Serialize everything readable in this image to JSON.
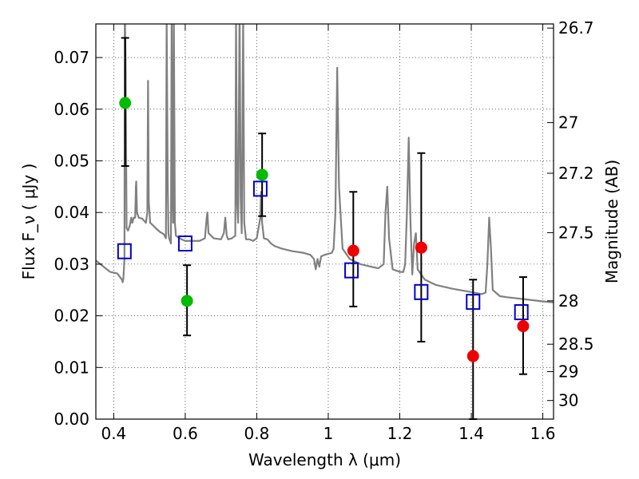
{
  "chart_data": {
    "type": "scatter",
    "xlabel": "Wavelength  λ (μm)",
    "ylabel": "Flux  F_ν  ( μJy )",
    "y2label": "Magnitude (AB)",
    "xlim": [
      0.35,
      1.63
    ],
    "ylim": [
      0.0,
      0.0765
    ],
    "grid": true,
    "x_ticks": [
      {
        "value": 0.4,
        "label": "0.4"
      },
      {
        "value": 0.6,
        "label": "0.6"
      },
      {
        "value": 0.8,
        "label": "0.8"
      },
      {
        "value": 1.0,
        "label": "1"
      },
      {
        "value": 1.2,
        "label": "1.2"
      },
      {
        "value": 1.4,
        "label": "1.4"
      },
      {
        "value": 1.6,
        "label": "1.6"
      }
    ],
    "y_ticks": [
      {
        "value": 0.0,
        "label": "0.00"
      },
      {
        "value": 0.01,
        "label": "0.01"
      },
      {
        "value": 0.02,
        "label": "0.02"
      },
      {
        "value": 0.03,
        "label": "0.03"
      },
      {
        "value": 0.04,
        "label": "0.04"
      },
      {
        "value": 0.05,
        "label": "0.05"
      },
      {
        "value": 0.06,
        "label": "0.06"
      },
      {
        "value": 0.07,
        "label": "0.07"
      }
    ],
    "y2_ticks": [
      {
        "flux": 0.0757,
        "label": "26.7"
      },
      {
        "flux": 0.0574,
        "label": "27"
      },
      {
        "flux": 0.0476,
        "label": "27.2"
      },
      {
        "flux": 0.0361,
        "label": "27.5"
      },
      {
        "flux": 0.0229,
        "label": "28"
      },
      {
        "flux": 0.0145,
        "label": "28.5"
      },
      {
        "flux": 0.0092,
        "label": "29"
      },
      {
        "flux": 0.0036,
        "label": "30"
      }
    ],
    "series": [
      {
        "color": "#808080",
        "kind": "line",
        "points": [
          [
            0.35,
            0.0307
          ],
          [
            0.37,
            0.0296
          ],
          [
            0.39,
            0.0285
          ],
          [
            0.41,
            0.0282
          ],
          [
            0.423,
            0.027
          ],
          [
            0.425,
            0.0265
          ],
          [
            0.427,
            0.0272
          ],
          [
            0.43,
            0.031
          ],
          [
            0.431,
            0.08
          ],
          [
            0.433,
            0.07
          ],
          [
            0.436,
            0.037
          ],
          [
            0.44,
            0.0365
          ],
          [
            0.445,
            0.0375
          ],
          [
            0.449,
            0.039
          ],
          [
            0.452,
            0.038
          ],
          [
            0.456,
            0.039
          ],
          [
            0.46,
            0.039
          ],
          [
            0.462,
            0.045
          ],
          [
            0.463,
            0.046
          ],
          [
            0.465,
            0.04
          ],
          [
            0.47,
            0.039
          ],
          [
            0.48,
            0.0388
          ],
          [
            0.49,
            0.038
          ],
          [
            0.494,
            0.04
          ],
          [
            0.496,
            0.0655
          ],
          [
            0.498,
            0.042
          ],
          [
            0.502,
            0.038
          ],
          [
            0.51,
            0.0375
          ],
          [
            0.52,
            0.0368
          ],
          [
            0.53,
            0.0362
          ],
          [
            0.54,
            0.0358
          ],
          [
            0.546,
            0.035
          ],
          [
            0.548,
            0.078
          ],
          [
            0.551,
            0.046
          ],
          [
            0.553,
            0.036
          ],
          [
            0.555,
            0.035
          ],
          [
            0.56,
            0.034
          ],
          [
            0.562,
            0.078
          ],
          [
            0.564,
            0.045
          ],
          [
            0.566,
            0.038
          ],
          [
            0.568,
            0.08
          ],
          [
            0.571,
            0.038
          ],
          [
            0.574,
            0.0355
          ],
          [
            0.58,
            0.0352
          ],
          [
            0.59,
            0.0348
          ],
          [
            0.6,
            0.0345
          ],
          [
            0.62,
            0.0345
          ],
          [
            0.64,
            0.0345
          ],
          [
            0.655,
            0.035
          ],
          [
            0.66,
            0.039
          ],
          [
            0.662,
            0.04
          ],
          [
            0.665,
            0.036
          ],
          [
            0.68,
            0.035
          ],
          [
            0.7,
            0.0348
          ],
          [
            0.708,
            0.036
          ],
          [
            0.712,
            0.039
          ],
          [
            0.716,
            0.0355
          ],
          [
            0.72,
            0.0348
          ],
          [
            0.73,
            0.035
          ],
          [
            0.74,
            0.0355
          ],
          [
            0.742,
            0.078
          ],
          [
            0.745,
            0.042
          ],
          [
            0.748,
            0.038
          ],
          [
            0.752,
            0.08
          ],
          [
            0.755,
            0.043
          ],
          [
            0.758,
            0.036
          ],
          [
            0.762,
            0.078
          ],
          [
            0.765,
            0.038
          ],
          [
            0.77,
            0.0348
          ],
          [
            0.78,
            0.0348
          ],
          [
            0.79,
            0.0345
          ],
          [
            0.8,
            0.035
          ],
          [
            0.81,
            0.039
          ],
          [
            0.812,
            0.044
          ],
          [
            0.815,
            0.038
          ],
          [
            0.82,
            0.035
          ],
          [
            0.83,
            0.0348
          ],
          [
            0.84,
            0.034
          ],
          [
            0.85,
            0.0335
          ],
          [
            0.87,
            0.033
          ],
          [
            0.9,
            0.0325
          ],
          [
            0.93,
            0.0322
          ],
          [
            0.95,
            0.0318
          ],
          [
            0.96,
            0.031
          ],
          [
            0.965,
            0.029
          ],
          [
            0.97,
            0.031
          ],
          [
            0.975,
            0.0295
          ],
          [
            0.98,
            0.0315
          ],
          [
            0.99,
            0.0318
          ],
          [
            1.0,
            0.032
          ],
          [
            1.01,
            0.0322
          ],
          [
            1.015,
            0.033
          ],
          [
            1.02,
            0.04
          ],
          [
            1.025,
            0.068
          ],
          [
            1.03,
            0.045
          ],
          [
            1.04,
            0.033
          ],
          [
            1.06,
            0.031
          ],
          [
            1.09,
            0.03
          ],
          [
            1.12,
            0.0295
          ],
          [
            1.14,
            0.0292
          ],
          [
            1.155,
            0.03
          ],
          [
            1.16,
            0.04
          ],
          [
            1.165,
            0.045
          ],
          [
            1.17,
            0.035
          ],
          [
            1.18,
            0.029
          ],
          [
            1.2,
            0.0285
          ],
          [
            1.21,
            0.0285
          ],
          [
            1.215,
            0.03
          ],
          [
            1.22,
            0.04
          ],
          [
            1.225,
            0.0545
          ],
          [
            1.23,
            0.038
          ],
          [
            1.235,
            0.028
          ],
          [
            1.24,
            0.034
          ],
          [
            1.245,
            0.036
          ],
          [
            1.25,
            0.029
          ],
          [
            1.27,
            0.027
          ],
          [
            1.3,
            0.026
          ],
          [
            1.35,
            0.0252
          ],
          [
            1.4,
            0.0246
          ],
          [
            1.43,
            0.0242
          ],
          [
            1.44,
            0.0245
          ],
          [
            1.445,
            0.03
          ],
          [
            1.45,
            0.039
          ],
          [
            1.455,
            0.033
          ],
          [
            1.46,
            0.025
          ],
          [
            1.48,
            0.0238
          ],
          [
            1.5,
            0.0236
          ],
          [
            1.55,
            0.0232
          ],
          [
            1.6,
            0.0228
          ],
          [
            1.63,
            0.0226
          ]
        ]
      },
      {
        "color": "#0000cc",
        "kind": "open-square",
        "points": [
          [
            0.43,
            0.0325
          ],
          [
            0.6,
            0.034
          ],
          [
            0.81,
            0.0446
          ],
          [
            1.065,
            0.0288
          ],
          [
            1.26,
            0.0246
          ],
          [
            1.405,
            0.0227
          ],
          [
            1.54,
            0.0207
          ]
        ]
      },
      {
        "color": "#00bb00",
        "kind": "filled-circle",
        "points": [
          [
            0.432,
            0.0612,
            0.049,
            0.0738
          ],
          [
            0.605,
            0.0229,
            0.0162,
            0.0298
          ],
          [
            0.815,
            0.0473,
            0.0393,
            0.0553
          ]
        ]
      },
      {
        "color": "#ee0000",
        "kind": "filled-circle",
        "points": [
          [
            1.07,
            0.0326,
            0.0218,
            0.044
          ],
          [
            1.26,
            0.0332,
            0.015,
            0.0515
          ],
          [
            1.405,
            0.0122,
            0.0,
            0.027
          ],
          [
            1.545,
            0.018,
            0.0087,
            0.0275
          ]
        ]
      }
    ]
  }
}
